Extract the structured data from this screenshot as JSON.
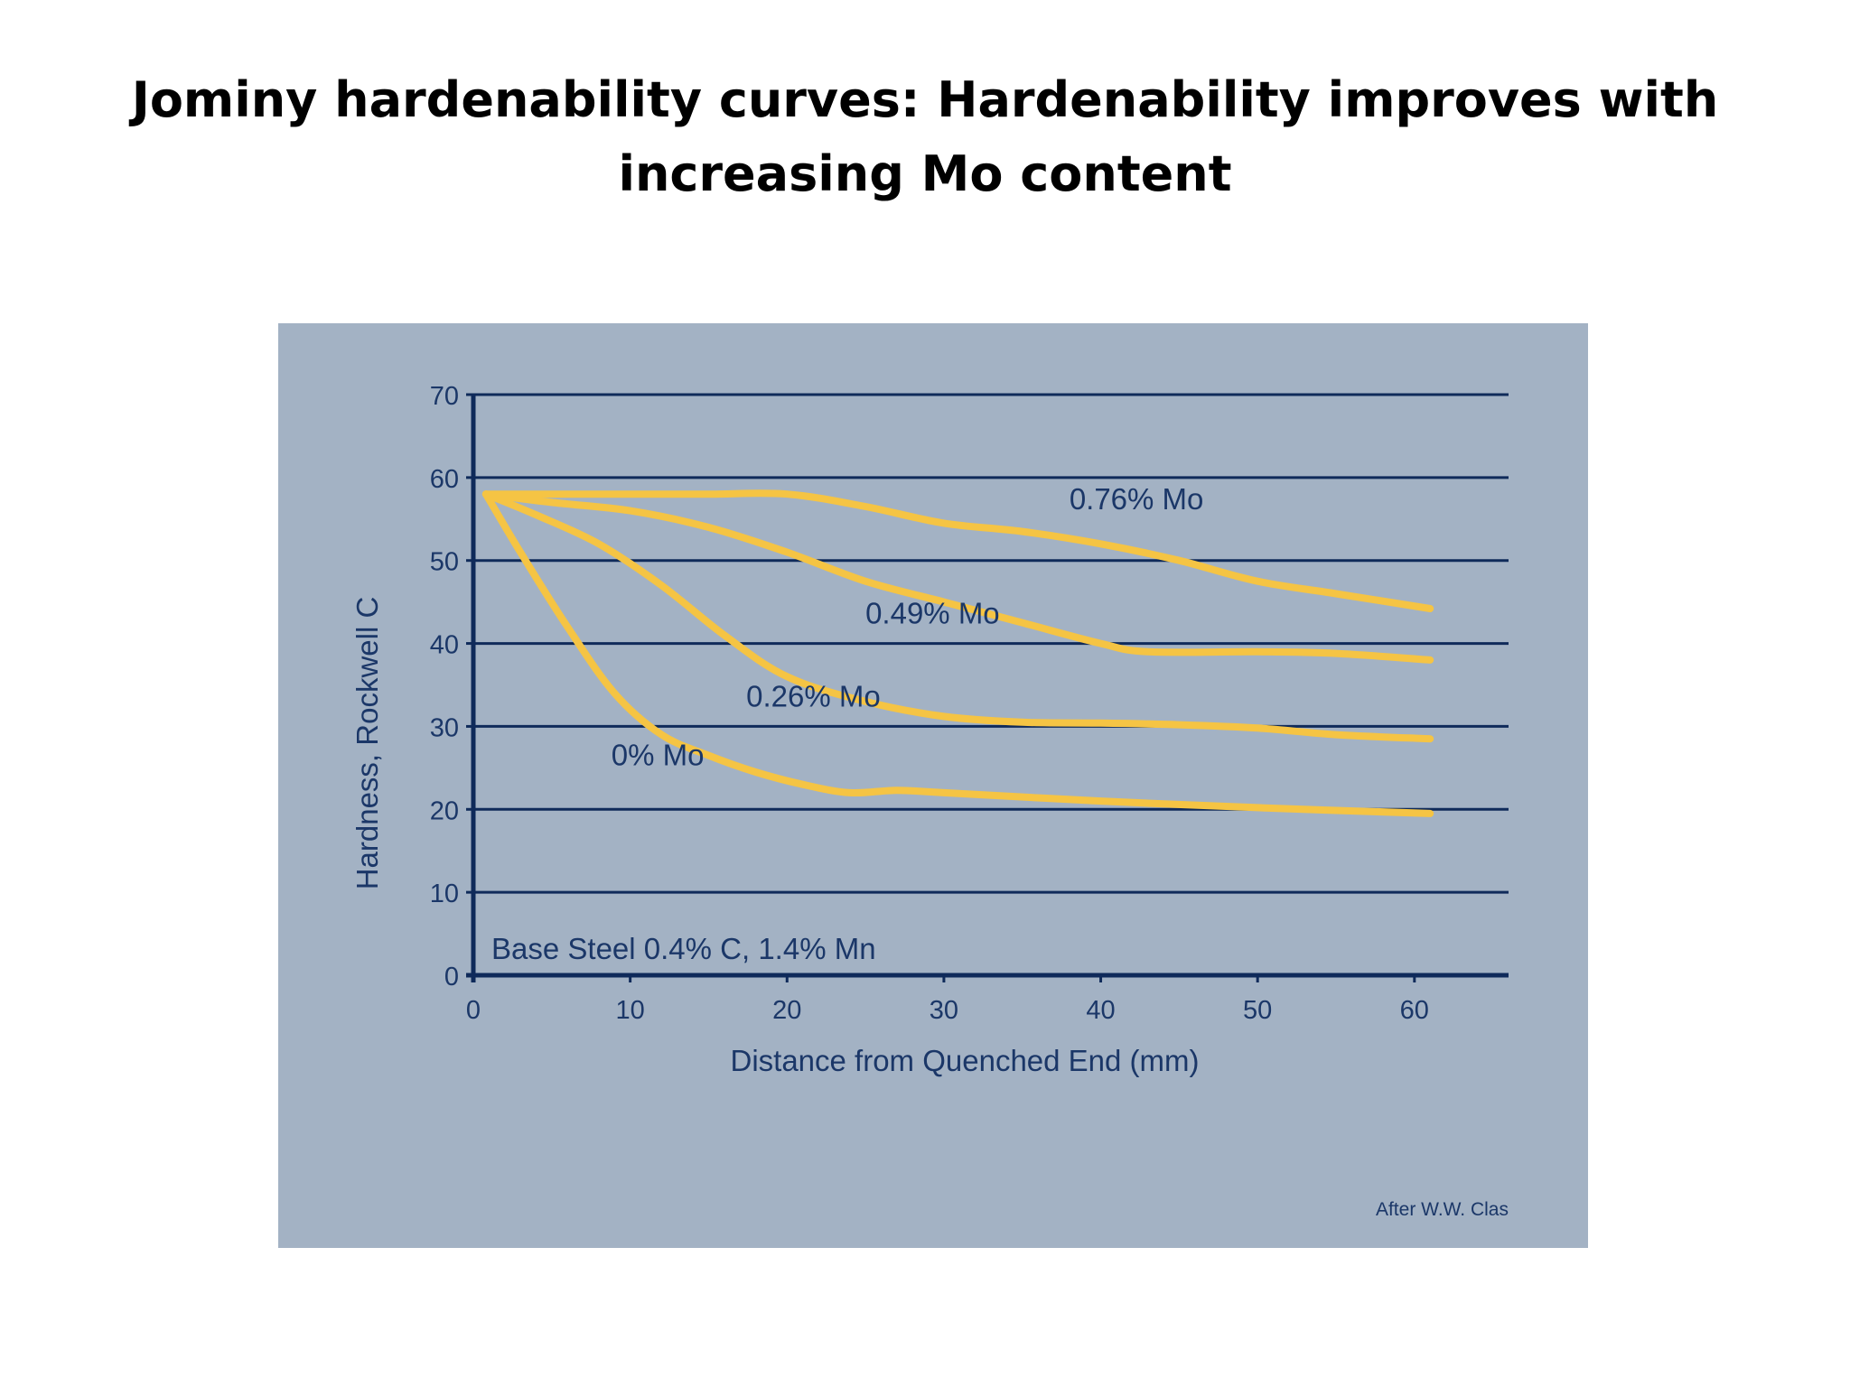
{
  "slide": {
    "title_line1": "Jominy hardenability curves: Hardenability improves with",
    "title_line2": "increasing Mo content"
  },
  "chart_data": {
    "type": "line",
    "title": "",
    "xlabel": "Distance from Quenched End (mm)",
    "ylabel": "Hardness, Rockwell C",
    "xlim": [
      0,
      66
    ],
    "ylim": [
      0,
      70
    ],
    "x_ticks": [
      0,
      10,
      20,
      30,
      40,
      50,
      60
    ],
    "y_ticks": [
      0,
      10,
      20,
      30,
      40,
      50,
      60,
      70
    ],
    "grid": "horizontal",
    "annotation": "Base Steel 0.4% C, 1.4% Mn",
    "credit": "After W.W. Clas",
    "colors": {
      "panel_background": "#a3b2c4",
      "axis_and_grid": "#0f2a5a",
      "text": "#1b3768",
      "curve": "#f5c444"
    },
    "series": [
      {
        "name": "0.76% Mo",
        "label_position": [
          38,
          56.2
        ],
        "x": [
          0.8,
          5,
          10,
          15,
          20,
          25,
          30,
          35,
          40,
          45,
          50,
          55,
          61
        ],
        "y": [
          58,
          58,
          58,
          58,
          58,
          56.5,
          54.5,
          53.5,
          52,
          50,
          47.5,
          46,
          44.2
        ]
      },
      {
        "name": "0.49% Mo",
        "label_position": [
          25,
          42.4
        ],
        "x": [
          0.8,
          5,
          10,
          15,
          20,
          25,
          30,
          35,
          40,
          43,
          50,
          55,
          61
        ],
        "y": [
          58,
          57,
          56,
          54,
          51,
          47.5,
          45,
          42.5,
          40,
          39,
          39,
          38.8,
          38
        ]
      },
      {
        "name": "0.26% Mo",
        "label_position": [
          17.4,
          32.4
        ],
        "x": [
          0.8,
          4,
          8,
          12,
          16,
          20,
          25,
          30,
          35,
          40,
          45,
          50,
          55,
          61
        ],
        "y": [
          58,
          55.5,
          52,
          47,
          41,
          36,
          33,
          31.2,
          30.5,
          30.4,
          30.2,
          29.8,
          29,
          28.5
        ]
      },
      {
        "name": "0% Mo",
        "label_position": [
          8.8,
          25.3
        ],
        "x": [
          0.8,
          3,
          6,
          9,
          12,
          15,
          18,
          21,
          24,
          27,
          30,
          40,
          50,
          61
        ],
        "y": [
          58,
          51,
          42,
          34,
          29,
          26.5,
          24.5,
          23,
          22,
          22.3,
          22,
          21,
          20.2,
          19.5
        ]
      }
    ]
  }
}
